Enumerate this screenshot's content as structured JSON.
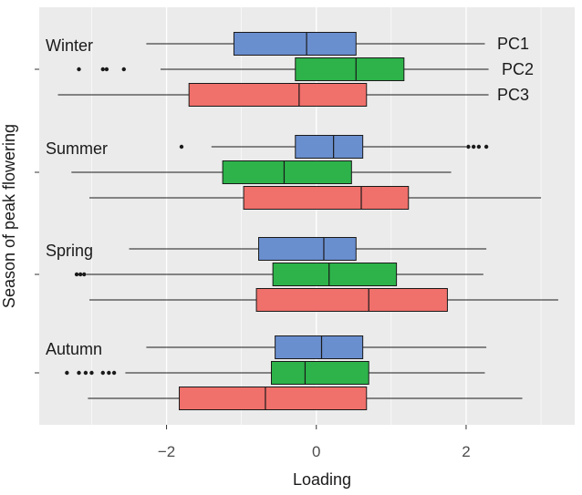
{
  "chart_data": {
    "type": "boxplot",
    "xlabel": "Loading",
    "ylabel": "Season of peak flowering",
    "xlim": [
      -3.7,
      3.45
    ],
    "xticks": [
      -2,
      0,
      2
    ],
    "xtick_labels": [
      "−2",
      "0",
      "2"
    ],
    "grid": true,
    "colors": {
      "PC1": "#6a8fcf",
      "PC2": "#2db34a",
      "PC3": "#f0706b"
    },
    "series_labels": [
      "PC1",
      "PC2",
      "PC3"
    ],
    "groups": [
      {
        "name": "Winter",
        "boxes": [
          {
            "series": "PC1",
            "whisker_low": -2.27,
            "q1": -1.1,
            "median": -0.13,
            "q3": 0.53,
            "whisker_high": 2.25,
            "outliers": []
          },
          {
            "series": "PC2",
            "whisker_low": -2.08,
            "q1": -0.28,
            "median": 0.53,
            "q3": 1.17,
            "whisker_high": 2.3,
            "outliers": [
              -3.17,
              -2.85,
              -2.8,
              -2.57
            ]
          },
          {
            "series": "PC3",
            "whisker_low": -3.45,
            "q1": -1.7,
            "median": -0.23,
            "q3": 0.67,
            "whisker_high": 2.3,
            "outliers": []
          }
        ]
      },
      {
        "name": "Summer",
        "boxes": [
          {
            "series": "PC1",
            "whisker_low": -1.4,
            "q1": -0.28,
            "median": 0.23,
            "q3": 0.62,
            "whisker_high": 2.0,
            "outliers": [
              -1.8,
              2.03,
              2.1,
              2.17,
              2.27
            ]
          },
          {
            "series": "PC2",
            "whisker_low": -3.27,
            "q1": -1.25,
            "median": -0.43,
            "q3": 0.47,
            "whisker_high": 1.8,
            "outliers": []
          },
          {
            "series": "PC3",
            "whisker_low": -3.03,
            "q1": -0.97,
            "median": 0.6,
            "q3": 1.23,
            "whisker_high": 3.0,
            "outliers": []
          }
        ]
      },
      {
        "name": "Spring",
        "boxes": [
          {
            "series": "PC1",
            "whisker_low": -2.5,
            "q1": -0.77,
            "median": 0.1,
            "q3": 0.53,
            "whisker_high": 2.27,
            "outliers": []
          },
          {
            "series": "PC2",
            "whisker_low": -3.07,
            "q1": -0.58,
            "median": 0.17,
            "q3": 1.07,
            "whisker_high": 2.23,
            "outliers": [
              -3.2,
              -3.15,
              -3.1
            ]
          },
          {
            "series": "PC3",
            "whisker_low": -3.03,
            "q1": -0.8,
            "median": 0.7,
            "q3": 1.75,
            "whisker_high": 3.23,
            "outliers": []
          }
        ]
      },
      {
        "name": "Autumn",
        "boxes": [
          {
            "series": "PC1",
            "whisker_low": -2.27,
            "q1": -0.55,
            "median": 0.07,
            "q3": 0.62,
            "whisker_high": 2.27,
            "outliers": []
          },
          {
            "series": "PC2",
            "whisker_low": -2.55,
            "q1": -0.6,
            "median": -0.15,
            "q3": 0.7,
            "whisker_high": 2.25,
            "outliers": [
              -3.33,
              -3.17,
              -3.08,
              -3.0,
              -2.85,
              -2.77,
              -2.7
            ]
          },
          {
            "series": "PC3",
            "whisker_low": -3.05,
            "q1": -1.83,
            "median": -0.68,
            "q3": 0.67,
            "whisker_high": 2.75,
            "outliers": []
          }
        ]
      }
    ]
  }
}
